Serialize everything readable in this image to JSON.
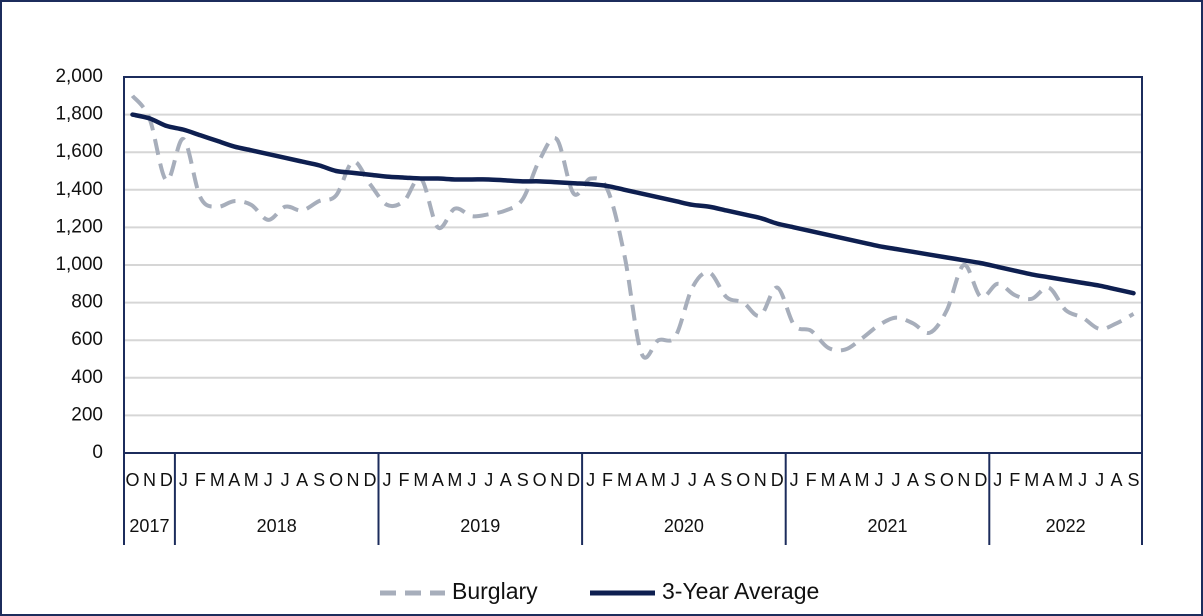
{
  "chart_data": {
    "type": "line",
    "categories": [
      "O",
      "N",
      "D",
      "J",
      "F",
      "M",
      "A",
      "M",
      "J",
      "J",
      "A",
      "S",
      "O",
      "N",
      "D",
      "J",
      "F",
      "M",
      "A",
      "M",
      "J",
      "J",
      "A",
      "S",
      "O",
      "N",
      "D",
      "J",
      "F",
      "M",
      "A",
      "M",
      "J",
      "J",
      "A",
      "S",
      "O",
      "N",
      "D",
      "J",
      "F",
      "M",
      "A",
      "M",
      "J",
      "J",
      "A",
      "S",
      "O",
      "N",
      "D",
      "J",
      "F",
      "M",
      "A",
      "M",
      "J",
      "J",
      "A",
      "S"
    ],
    "year_labels": [
      "2017",
      "2018",
      "2019",
      "2020",
      "2021",
      "2022"
    ],
    "series": [
      {
        "name": "Burglary",
        "color": "#a7aebb",
        "dashed": true,
        "values": [
          1900,
          1780,
          1450,
          1670,
          1360,
          1310,
          1340,
          1320,
          1240,
          1310,
          1290,
          1340,
          1370,
          1550,
          1430,
          1320,
          1340,
          1460,
          1200,
          1300,
          1260,
          1270,
          1290,
          1350,
          1560,
          1670,
          1380,
          1460,
          1400,
          1050,
          530,
          600,
          620,
          880,
          960,
          830,
          800,
          730,
          880,
          680,
          650,
          560,
          550,
          610,
          680,
          720,
          690,
          640,
          760,
          1000,
          830,
          900,
          840,
          820,
          880,
          760,
          720,
          660,
          690,
          740
        ]
      },
      {
        "name": "3-Year Average",
        "color": "#0e1f50",
        "dashed": false,
        "values": [
          1800,
          1780,
          1740,
          1720,
          1690,
          1660,
          1630,
          1610,
          1590,
          1570,
          1550,
          1530,
          1500,
          1490,
          1480,
          1470,
          1465,
          1460,
          1460,
          1455,
          1455,
          1455,
          1450,
          1445,
          1445,
          1440,
          1435,
          1430,
          1420,
          1400,
          1380,
          1360,
          1340,
          1320,
          1310,
          1290,
          1270,
          1250,
          1220,
          1200,
          1180,
          1160,
          1140,
          1120,
          1100,
          1085,
          1070,
          1055,
          1040,
          1025,
          1010,
          990,
          970,
          950,
          935,
          920,
          905,
          890,
          870,
          850
        ]
      }
    ],
    "ylim": [
      0,
      2000
    ],
    "yticks": [
      0,
      200,
      400,
      600,
      800,
      {
        "value": 1000,
        "label": "1,000"
      },
      {
        "value": 1200,
        "label": "1,200"
      },
      {
        "value": 1400,
        "label": "1,400"
      },
      {
        "value": 1600,
        "label": "1,600"
      },
      {
        "value": 1800,
        "label": "1,800"
      },
      {
        "value": 2000,
        "label": "2,000"
      }
    ],
    "grid": true,
    "legend": "bottom"
  }
}
